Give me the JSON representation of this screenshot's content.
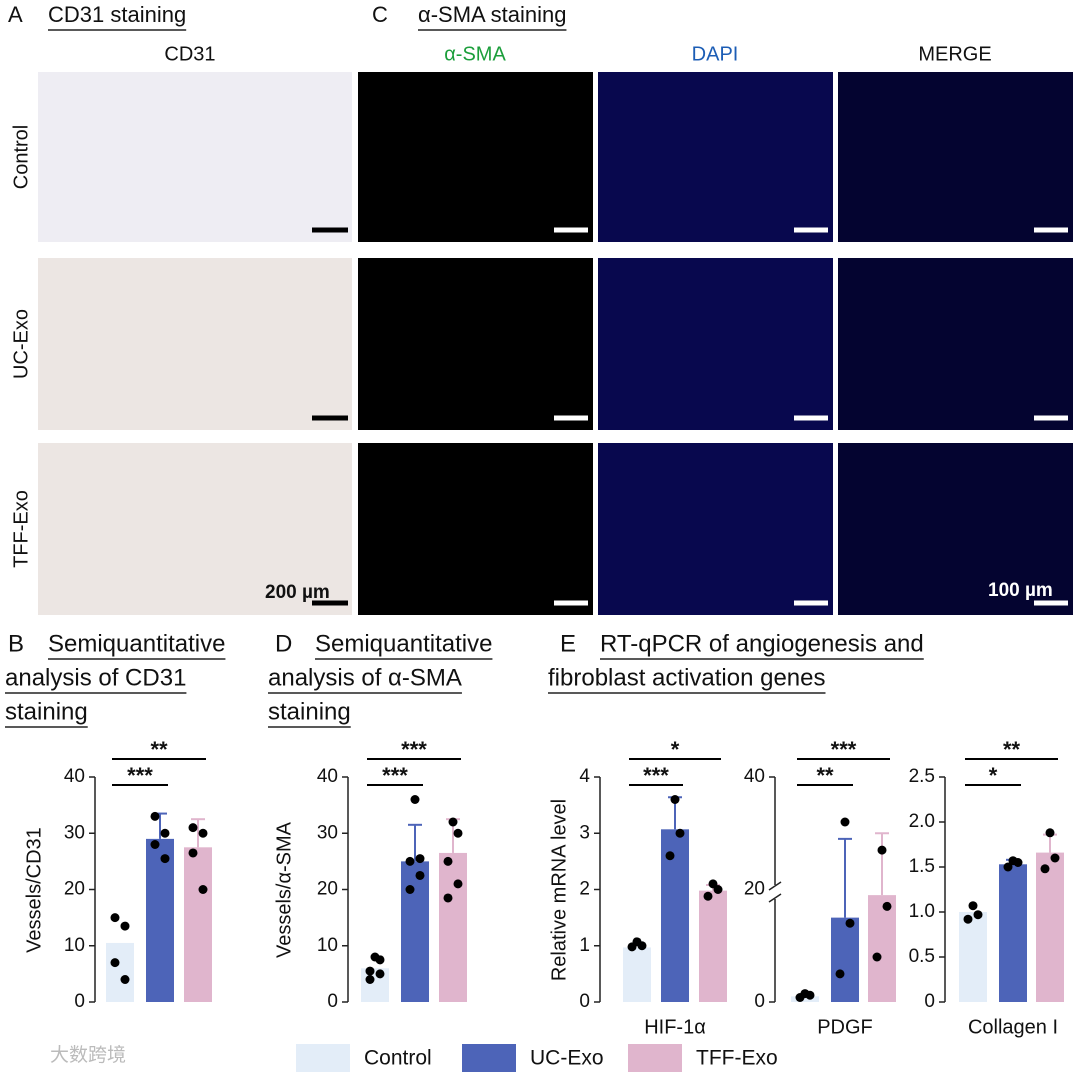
{
  "panels": {
    "A": {
      "letter": "A",
      "title": "CD31 staining",
      "column": "CD31",
      "rows": [
        "Control",
        "UC-Exo",
        "TFF-Exo"
      ],
      "scale": "200 µm"
    },
    "C": {
      "letter": "C",
      "title": "α-SMA staining",
      "columns": [
        "α-SMA",
        "DAPI",
        "MERGE"
      ],
      "scale": "100 µm"
    },
    "B": {
      "letter": "B",
      "title": [
        "Semiquantitative",
        "analysis of CD31",
        "staining"
      ]
    },
    "D": {
      "letter": "D",
      "title": [
        "Semiquantitative",
        "analysis of α-SMA",
        "staining"
      ]
    },
    "E": {
      "letter": "E",
      "title": [
        "RT-qPCR of angiogenesis and",
        "fibroblast activation genes"
      ]
    }
  },
  "legend": [
    {
      "name": "Control",
      "color": "#e3edf8"
    },
    {
      "name": "UC-Exo",
      "color": "#4d64b8"
    },
    {
      "name": "TFF-Exo",
      "color": "#e0b5cd"
    }
  ],
  "watermark": "大数跨境",
  "chart_data": [
    {
      "type": "bar",
      "ylabel": "Vessels/CD31",
      "ylim": [
        0,
        40
      ],
      "yticks": [
        0,
        10,
        20,
        30,
        40
      ],
      "values": [
        10.5,
        29,
        27.5
      ],
      "errors": [
        0,
        4.5,
        5
      ],
      "points": [
        [
          15,
          13.5,
          7,
          4
        ],
        [
          33,
          30,
          28,
          25.5
        ],
        [
          31,
          30,
          26.5,
          20
        ]
      ],
      "significance": [
        {
          "label": "***",
          "groups": [
            0,
            1
          ]
        },
        {
          "label": "**",
          "groups": [
            0,
            2
          ]
        }
      ]
    },
    {
      "type": "bar",
      "ylabel": "Vessels/α-SMA",
      "ylim": [
        0,
        40
      ],
      "yticks": [
        0,
        10,
        20,
        30,
        40
      ],
      "values": [
        6,
        25,
        26.5
      ],
      "errors": [
        0,
        6.5,
        6
      ],
      "points": [
        [
          8,
          7.5,
          5.5,
          5,
          4
        ],
        [
          36,
          25.5,
          25,
          22.5,
          20
        ],
        [
          32,
          30,
          25,
          21,
          18.5
        ]
      ],
      "significance": [
        {
          "label": "***",
          "groups": [
            0,
            1
          ]
        },
        {
          "label": "***",
          "groups": [
            0,
            2
          ]
        }
      ]
    },
    {
      "type": "bar",
      "ylabel": "Relative mRNA level",
      "xlabel": "HIF-1α",
      "ylim": [
        0,
        4
      ],
      "yticks": [
        0,
        1,
        2,
        3,
        4
      ],
      "values": [
        0.97,
        3.07,
        1.98
      ],
      "errors": [
        0,
        0.57,
        0.1
      ],
      "points": [
        [
          1.07,
          1.0,
          0.98
        ],
        [
          3.6,
          3.0,
          2.6
        ],
        [
          2.1,
          2.0,
          1.88
        ]
      ],
      "significance": [
        {
          "label": "***",
          "groups": [
            0,
            1
          ]
        },
        {
          "label": "*",
          "groups": [
            0,
            2
          ]
        }
      ]
    },
    {
      "type": "bar",
      "xlabel": "PDGF",
      "ylim": [
        0,
        40
      ],
      "yticks": [
        0,
        20,
        40
      ],
      "axis_break": true,
      "values": [
        1,
        15,
        19
      ],
      "errors": [
        0,
        14,
        11
      ],
      "points": [
        [
          1.5,
          1.2,
          0.8
        ],
        [
          32,
          14,
          5
        ],
        [
          27,
          17,
          8
        ]
      ],
      "significance": [
        {
          "label": "**",
          "groups": [
            0,
            1
          ]
        },
        {
          "label": "***",
          "groups": [
            0,
            2
          ]
        }
      ]
    },
    {
      "type": "bar",
      "xlabel": "Collagen I",
      "ylim": [
        0,
        2.5
      ],
      "yticks": [
        0,
        0.5,
        {
          "value": 1,
          "label": "1.0"
        },
        1.5,
        {
          "value": 2,
          "label": "2.0"
        },
        2.5
      ],
      "values": [
        1.0,
        1.53,
        1.66
      ],
      "errors": [
        0,
        0.05,
        0.2
      ],
      "points": [
        [
          1.07,
          0.97,
          0.92
        ],
        [
          1.57,
          1.55,
          1.5
        ],
        [
          1.88,
          1.6,
          1.48
        ]
      ],
      "significance": [
        {
          "label": "*",
          "groups": [
            0,
            1
          ]
        },
        {
          "label": "**",
          "groups": [
            0,
            2
          ]
        }
      ]
    }
  ]
}
